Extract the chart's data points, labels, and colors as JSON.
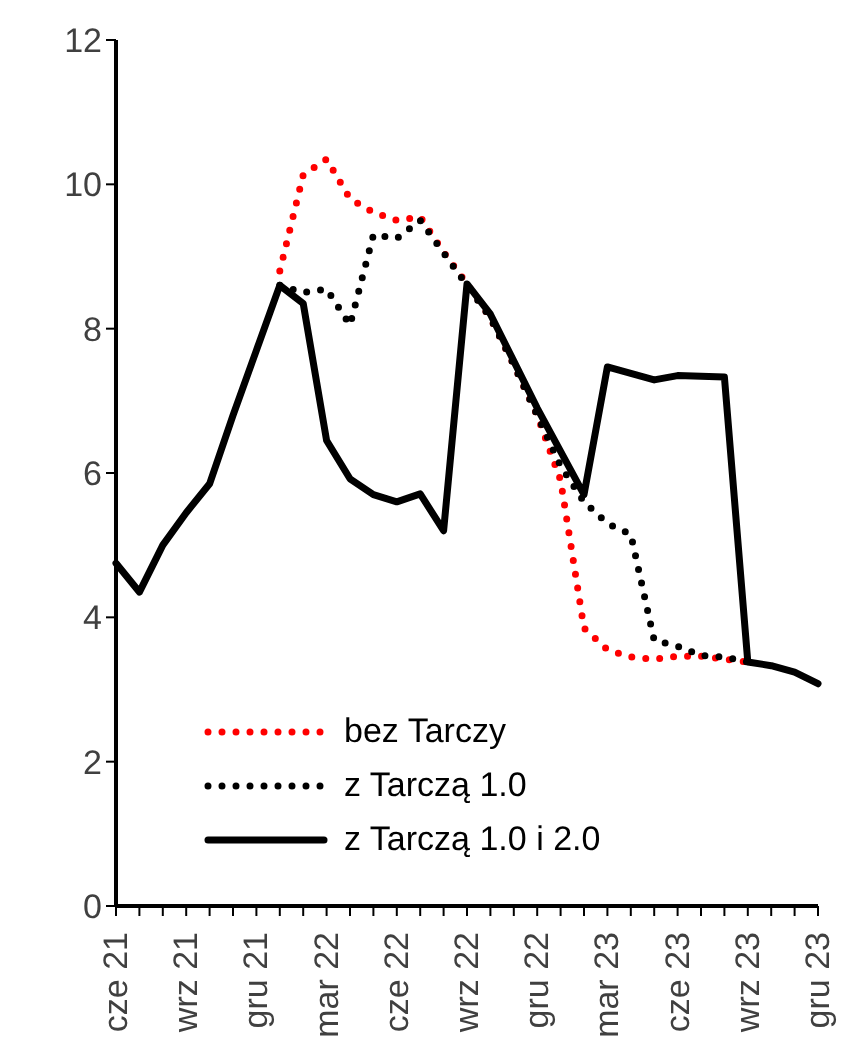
{
  "chart_data": {
    "type": "line",
    "categories": [
      "cze 21",
      null,
      null,
      "wrz 21",
      null,
      null,
      "gru 21",
      null,
      null,
      "mar 22",
      null,
      null,
      "cze 22",
      null,
      null,
      "wrz 22",
      null,
      null,
      "gru 22",
      null,
      null,
      "mar 23",
      null,
      null,
      "cze 23",
      null,
      null,
      "wrz 23",
      null,
      null,
      "gru 23"
    ],
    "series": [
      {
        "name": "bez Tarczy",
        "color": "#ff0000",
        "line_style": "dotted",
        "values": [
          null,
          null,
          null,
          null,
          null,
          null,
          null,
          8.8,
          10.13,
          10.35,
          9.8,
          9.61,
          9.5,
          9.55,
          9.06,
          8.62,
          8.15,
          7.5,
          6.8,
          5.9,
          3.85,
          3.55,
          3.45,
          3.42,
          3.46,
          3.46,
          3.42,
          3.38,
          null,
          null,
          null
        ]
      },
      {
        "name": "z Tarczą 1.0",
        "color": "#000000",
        "line_style": "dotted",
        "values": [
          null,
          null,
          null,
          null,
          null,
          null,
          null,
          8.6,
          8.5,
          8.55,
          8.05,
          9.3,
          9.25,
          9.5,
          9.05,
          8.6,
          8.15,
          7.5,
          6.8,
          6.1,
          5.6,
          5.3,
          5.15,
          3.68,
          3.6,
          3.47,
          3.45,
          3.38,
          null,
          null,
          null
        ]
      },
      {
        "name": "z Tarczą 1.0 i 2.0",
        "color": "#000000",
        "line_style": "solid",
        "values": [
          4.75,
          4.35,
          5.0,
          5.45,
          5.85,
          6.8,
          7.7,
          8.6,
          8.35,
          6.45,
          5.92,
          5.7,
          5.6,
          5.71,
          5.2,
          8.62,
          8.2,
          7.55,
          6.9,
          6.3,
          5.7,
          7.47,
          7.38,
          7.29,
          7.35,
          7.34,
          7.33,
          3.38,
          3.33,
          3.24,
          3.08
        ]
      }
    ],
    "ylim": [
      0,
      12
    ],
    "yticks": [
      0,
      2,
      4,
      6,
      8,
      10,
      12
    ],
    "grid": false,
    "marker": "none",
    "legend": "bottom left"
  }
}
